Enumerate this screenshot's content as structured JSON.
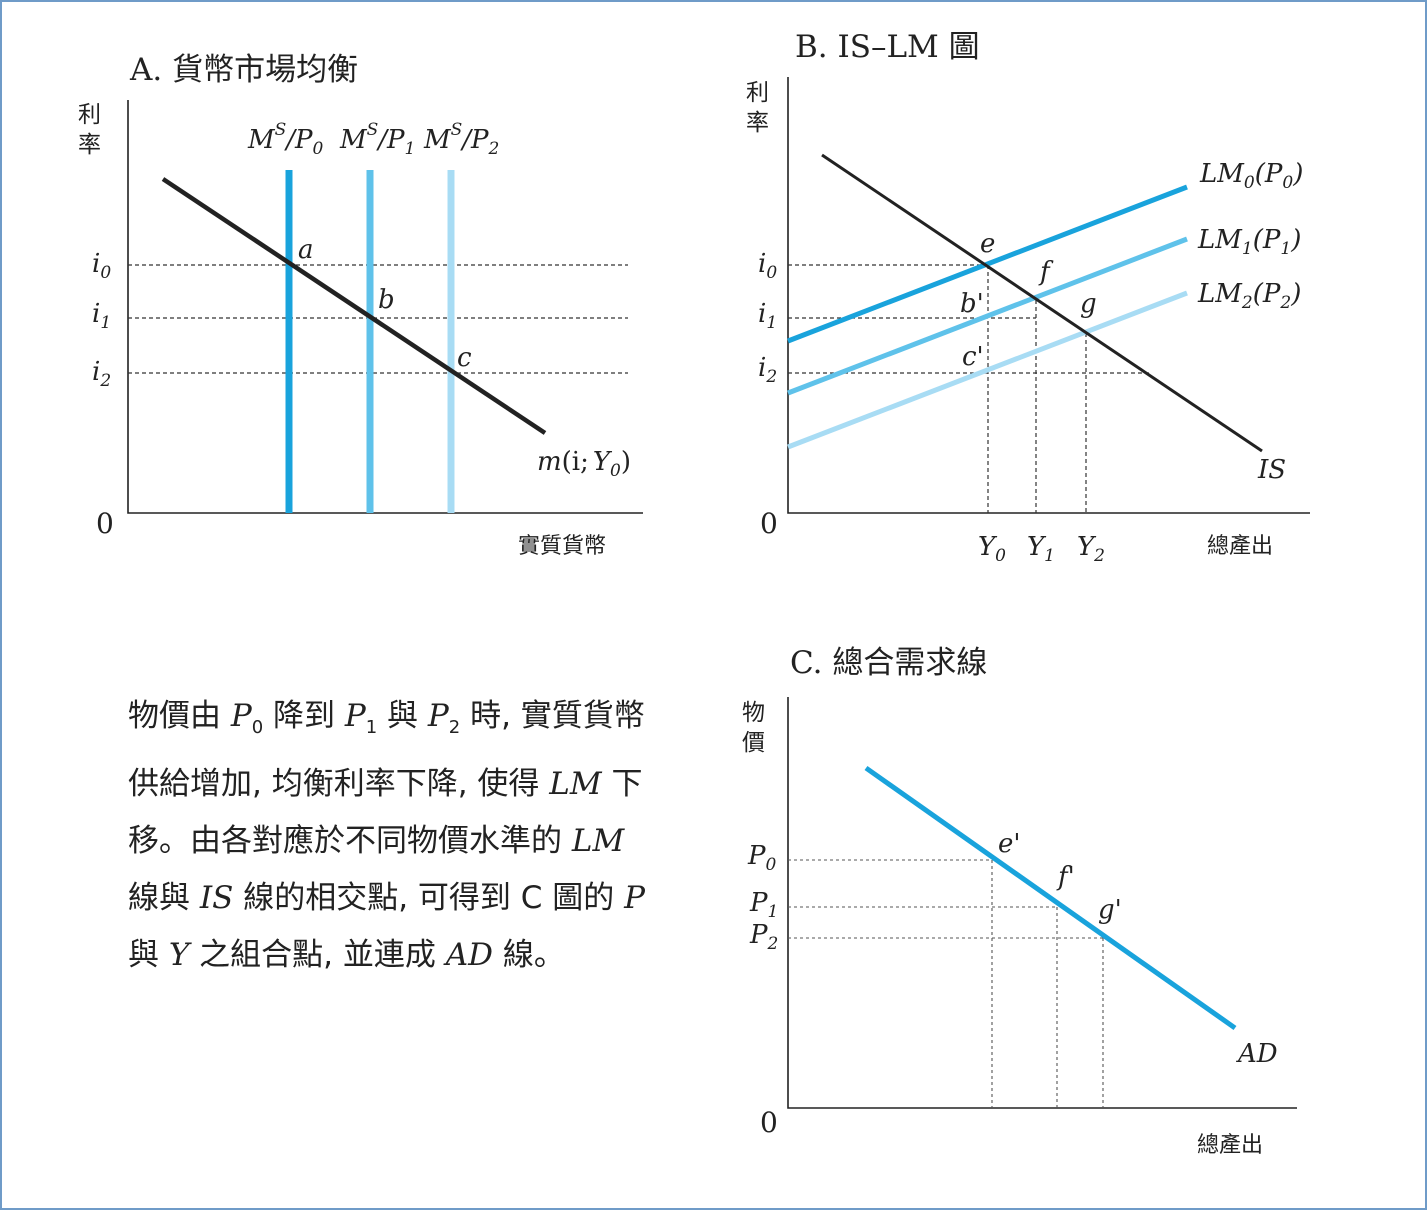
{
  "colors": {
    "curve_dark": "#222222",
    "line_p0": "#19a3dc",
    "line_p1": "#5fc2ea",
    "line_p2": "#a8dcf4",
    "frame_border": "#6f9bc8"
  },
  "panel_a": {
    "title": "A. 貨幣市場均衡",
    "ylabel_chars": [
      "利",
      "率"
    ],
    "xlabel": "實質貨幣",
    "origin": "0",
    "supply_labels": [
      {
        "sym": "M",
        "sup": "S",
        "slash": "/",
        "p": "P",
        "sub": "0"
      },
      {
        "sym": "M",
        "sup": "S",
        "slash": "/",
        "p": "P",
        "sub": "1"
      },
      {
        "sym": "M",
        "sup": "S",
        "slash": "/",
        "p": "P",
        "sub": "2"
      }
    ],
    "rate_ticks": [
      {
        "base": "i",
        "sub": "0"
      },
      {
        "base": "i",
        "sub": "1"
      },
      {
        "base": "i",
        "sub": "2"
      }
    ],
    "points": [
      "a",
      "b",
      "c"
    ],
    "demand_label": {
      "m": "m",
      "open": "(i;",
      "y": "Y",
      "sub": "0",
      "close": ")"
    }
  },
  "panel_b": {
    "title": "B. IS–LM 圖",
    "ylabel_chars": [
      "利",
      "率"
    ],
    "xlabel": "總產出",
    "origin": "0",
    "lm_labels": [
      {
        "lm": "LM",
        "lmsub": "0",
        "p": "(P",
        "psub": "0",
        "close": ")"
      },
      {
        "lm": "LM",
        "lmsub": "1",
        "p": "(P",
        "psub": "1",
        "close": ")"
      },
      {
        "lm": "LM",
        "lmsub": "2",
        "p": "(P",
        "psub": "2",
        "close": ")"
      }
    ],
    "is_label": "IS",
    "rate_ticks": [
      {
        "base": "i",
        "sub": "0"
      },
      {
        "base": "i",
        "sub": "1"
      },
      {
        "base": "i",
        "sub": "2"
      }
    ],
    "output_ticks": [
      {
        "base": "Y",
        "sub": "0"
      },
      {
        "base": "Y",
        "sub": "1"
      },
      {
        "base": "Y",
        "sub": "2"
      }
    ],
    "points": [
      "e",
      "f",
      "g",
      "b'",
      "c'"
    ]
  },
  "panel_c": {
    "title": "C. 總合需求線",
    "ylabel_chars": [
      "物",
      "價"
    ],
    "xlabel": "總產出",
    "origin": "0",
    "price_ticks": [
      {
        "base": "P",
        "sub": "0"
      },
      {
        "base": "P",
        "sub": "1"
      },
      {
        "base": "P",
        "sub": "2"
      }
    ],
    "points": [
      "e'",
      "f'",
      "g'"
    ],
    "ad_label": "AD"
  },
  "caption": {
    "s1": "物價由 ",
    "p0": "P",
    "p0sub": "0",
    "s2": " 降到 ",
    "p1": "P",
    "p1sub": "1",
    "s3": " 與 ",
    "p2": "P",
    "p2sub": "2",
    "s4": " 時, 實質貨幣供給增加, 均衡利率下降, 使得 ",
    "lm1": "LM",
    "s5": " 下移。由各對應於不同物價水準的 ",
    "lm2": "LM",
    "s6": " 線與 ",
    "is": "IS",
    "s7": " 線的相交點, 可得到 C 圖的 ",
    "p": "P",
    "s8": " 與 ",
    "y": "Y",
    "s9": " 之組合點, 並連成 ",
    "ad": "AD",
    "s10": " 線。"
  }
}
